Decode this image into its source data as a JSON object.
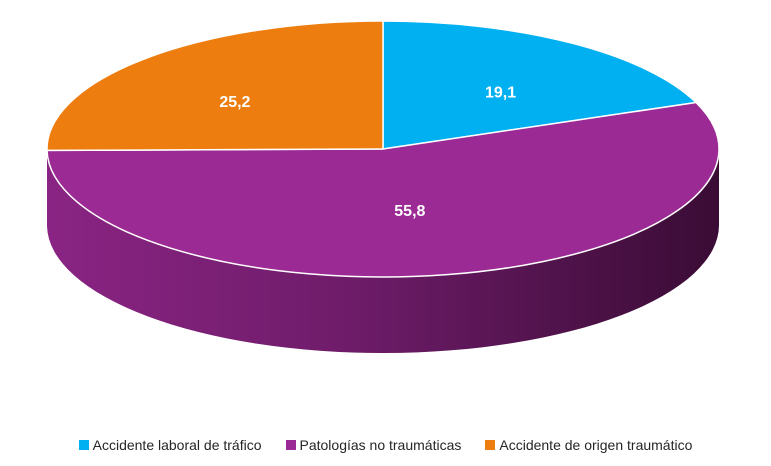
{
  "chart_data": {
    "type": "pie",
    "categories": [
      "Accidente laboral de tráfico",
      "Patologías no traumáticas",
      "Accidente de origen traumático"
    ],
    "values": [
      19.1,
      55.8,
      25.2
    ],
    "data_labels": [
      "19,1",
      "55,8",
      "25,2"
    ],
    "colors": [
      "#00B0F0",
      "#9B2A94",
      "#ED7D0F"
    ],
    "legend_position": "bottom",
    "style": "3d"
  },
  "legend": {
    "items": [
      {
        "label": "Accidente laboral de tráfico",
        "color": "#00B0F0"
      },
      {
        "label": "Patologías no traumáticas",
        "color": "#9B2A94"
      },
      {
        "label": "Accidente de origen traumático",
        "color": "#ED7D0F"
      }
    ]
  }
}
